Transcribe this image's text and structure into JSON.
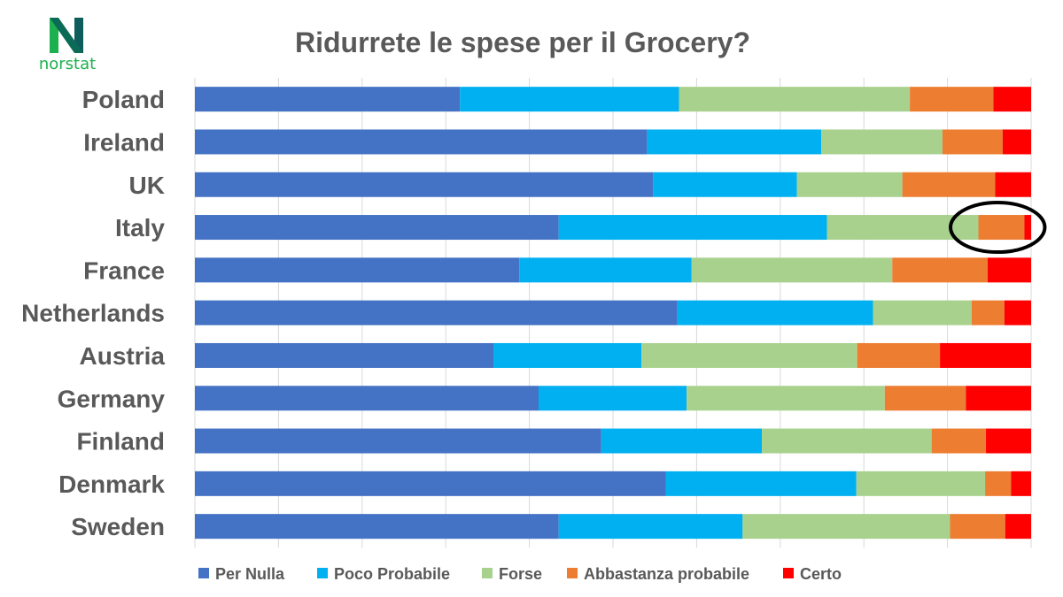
{
  "brand": {
    "name": "norstat",
    "mark": "N"
  },
  "chart_data": {
    "type": "bar",
    "orientation": "horizontal",
    "stacked": true,
    "normalized": "percent",
    "title": "Ridurrete le spese per il Grocery?",
    "xlabel": "",
    "ylabel": "",
    "xlim": [
      0,
      100
    ],
    "grid": true,
    "legend_position": "bottom",
    "categories": [
      "Poland",
      "Ireland",
      "UK",
      "Italy",
      "France",
      "Netherlands",
      "Austria",
      "Germany",
      "Finland",
      "Denmark",
      "Sweden"
    ],
    "series": [
      {
        "name": "Per Nulla",
        "color": "#4472c4",
        "values": [
          31.7,
          54.1,
          54.8,
          43.5,
          38.8,
          57.7,
          35.7,
          41.1,
          48.6,
          56.3,
          43.5
        ]
      },
      {
        "name": "Poco Probabile",
        "color": "#00b0f0",
        "values": [
          26.2,
          20.8,
          17.2,
          32.1,
          20.6,
          23.4,
          17.7,
          17.7,
          19.2,
          22.8,
          22.0
        ]
      },
      {
        "name": "Forse",
        "color": "#a9d18e",
        "values": [
          27.6,
          14.5,
          12.6,
          18.1,
          24.0,
          11.8,
          25.8,
          23.7,
          20.3,
          15.4,
          24.8
        ]
      },
      {
        "name": "Abbastanza probabile",
        "color": "#ed7d31",
        "values": [
          10.0,
          7.2,
          11.1,
          5.5,
          11.4,
          3.9,
          9.9,
          9.7,
          6.5,
          3.1,
          6.6
        ]
      },
      {
        "name": "Certo",
        "color": "#ff0000",
        "values": [
          4.5,
          3.4,
          4.3,
          0.8,
          5.2,
          3.2,
          10.9,
          7.8,
          5.4,
          2.4,
          3.1
        ]
      }
    ],
    "annotation": {
      "type": "ellipse",
      "category": "Italy",
      "range": [
        91,
        101
      ]
    }
  }
}
